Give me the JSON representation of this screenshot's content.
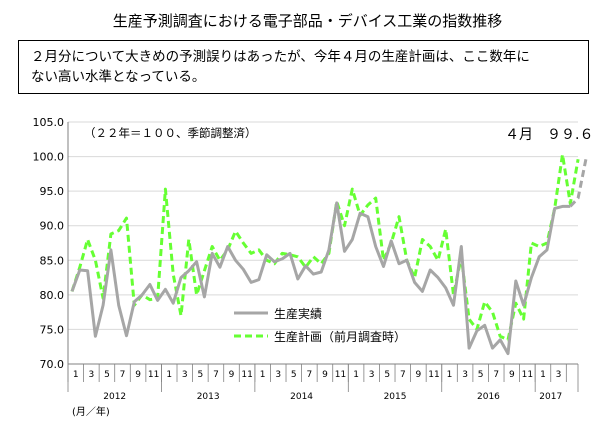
{
  "title": "生産予測調査における電子部品・デバイス工業の指数推移",
  "summary_line1": "２月分について大きめの予測誤りはあったが、今年４月の生産計画は、ここ数年に",
  "summary_line2": "ない高い水準となっている。",
  "chart_data": {
    "type": "line",
    "base_note": "（２２年＝１００、季節調整済）",
    "highlight": "４月　９９.６",
    "axis_unit": "(月／年)",
    "ylim": [
      70.0,
      105.0
    ],
    "yticks": [
      "70.0",
      "75.0",
      "80.0",
      "85.0",
      "90.0",
      "95.0",
      "100.0",
      "105.0"
    ],
    "month_labels": [
      "1",
      "3",
      "5",
      "7",
      "9",
      "11",
      "1",
      "3",
      "5",
      "7",
      "9",
      "11",
      "1",
      "3",
      "5",
      "7",
      "9",
      "11",
      "1",
      "3",
      "5",
      "7",
      "9",
      "11",
      "1",
      "3",
      "5",
      "7",
      "9",
      "11",
      "1",
      "3"
    ],
    "years": [
      "2012",
      "2013",
      "2014",
      "2015",
      "2016",
      "2017"
    ],
    "legend_position": "center-left",
    "series": [
      {
        "name": "生産実績",
        "color": "#a6a6a6",
        "style": "solid",
        "values": [
          80.5,
          83.6,
          83.5,
          74.0,
          78.5,
          86.5,
          78.5,
          74.1,
          79.0,
          80.0,
          81.5,
          79.2,
          80.8,
          78.8,
          82.5,
          83.5,
          84.8,
          79.7,
          86.0,
          84.0,
          87.0,
          85.0,
          83.7,
          81.8,
          82.2,
          85.8,
          84.8,
          85.2,
          86.0,
          82.3,
          84.2,
          83.0,
          83.3,
          86.5,
          93.3,
          86.3,
          88.0,
          91.8,
          91.3,
          87.0,
          84.1,
          87.8,
          84.5,
          85.0,
          81.8,
          80.5,
          83.6,
          82.5,
          81.0,
          78.5,
          87.0,
          72.3,
          74.8,
          75.6,
          72.3,
          73.5,
          71.5,
          82.0,
          78.5,
          82.5,
          85.5,
          86.5,
          92.5,
          92.8,
          92.8
        ],
        "planned_from_index": 62,
        "planned_values": [
          94.0,
          99.6
        ]
      },
      {
        "name": "生産計画（前月調査時）",
        "color": "#66ff33",
        "style": "dashed",
        "values": [
          80.5,
          84.0,
          88.0,
          85.0,
          79.5,
          88.8,
          89.3,
          91.1,
          78.5,
          80.0,
          79.3,
          79.5,
          95.3,
          83.0,
          77.0,
          88.0,
          80.0,
          83.5,
          87.0,
          85.0,
          86.5,
          89.2,
          87.5,
          86.0,
          86.5,
          85.0,
          84.5,
          86.0,
          85.8,
          85.5,
          84.0,
          85.5,
          84.5,
          86.0,
          93.5,
          90.0,
          95.3,
          91.5,
          93.0,
          94.0,
          85.0,
          87.5,
          91.3,
          85.0,
          82.5,
          88.0,
          87.0,
          85.0,
          89.5,
          80.0,
          85.5,
          76.5,
          75.0,
          79.0,
          77.5,
          74.0,
          73.5,
          78.8,
          76.5,
          87.5,
          87.0,
          87.5,
          92.5,
          100.3,
          93.2,
          99.6
        ]
      }
    ]
  }
}
